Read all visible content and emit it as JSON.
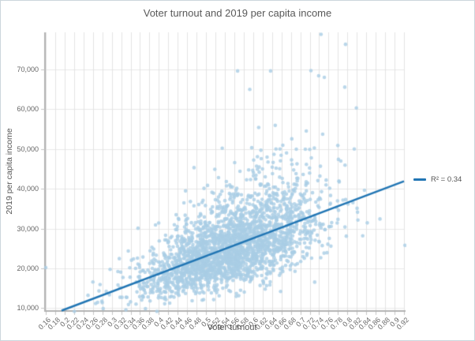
{
  "window": {
    "background": "#ffffff",
    "border_color": "#ccd6dc"
  },
  "chart_data": {
    "type": "scatter",
    "title": "Voter turnout and 2019 per capita income",
    "xlabel": "Voter turnout",
    "ylabel": "2019 per capita income",
    "xlim": [
      0.16,
      0.92
    ],
    "ylim": [
      9300,
      79300
    ],
    "grid": true,
    "x_ticks": [
      0.16,
      0.18,
      0.2,
      0.22,
      0.24,
      0.26,
      0.28,
      0.3,
      0.32,
      0.34,
      0.36,
      0.38,
      0.4,
      0.42,
      0.44,
      0.46,
      0.48,
      0.5,
      0.52,
      0.54,
      0.56,
      0.58,
      0.6,
      0.62,
      0.64,
      0.66,
      0.68,
      0.7,
      0.72,
      0.74,
      0.76,
      0.78,
      0.8,
      0.82,
      0.84,
      0.86,
      0.88,
      0.9,
      0.92
    ],
    "x_tick_labels": [
      "0.16",
      "0.18",
      "0.2",
      "0.22",
      "0.24",
      "0.26",
      "0.28",
      "0.3",
      "0.32",
      "0.34",
      "0.36",
      "0.38",
      "0.4",
      "0.42",
      "0.44",
      "0.46",
      "0.48",
      "0.5",
      "0.52",
      "0.54",
      "0.56",
      "0.58",
      "0.6",
      "0.62",
      "0.64",
      "0.66",
      "0.68",
      "0.7",
      "0.72",
      "0.74",
      "0.76",
      "0.78",
      "0.8",
      "0.82",
      "0.84",
      "0.86",
      "0.88",
      "0.9",
      "0.92"
    ],
    "y_ticks": [
      10000,
      20000,
      30000,
      40000,
      50000,
      60000,
      70000
    ],
    "y_tick_labels": [
      "10,000",
      "20,000",
      "30,000",
      "40,000",
      "50,000",
      "60,000",
      "70,000"
    ],
    "legend": {
      "label": "R² = 0.34",
      "position": "right",
      "line_color": "#2276b4"
    },
    "trendline": {
      "r_squared": 0.34,
      "x1": 0.1935,
      "y1": 9400,
      "x2": 0.92,
      "y2": 41900,
      "color": "#2276b4",
      "width": 2.5
    },
    "points": {
      "description": "Dense cloud of ~2550 county-level observations; positive correlation between voter turnout and 2019 per capita income (R² = 0.34).",
      "color": "#a9cde5",
      "opacity": 0.8,
      "radius": 2.3,
      "count": 2550,
      "seed": 7,
      "distribution": {
        "model": "x ~ Normal(x_mean, x_sd); y = (slope*x + intercept) * exp(Normal(0, log_sd))",
        "x_mean": 0.555,
        "x_sd": 0.093,
        "slope": 44520,
        "intercept": 941,
        "log_sd": 0.22,
        "x_clip": [
          0.162,
          0.925
        ],
        "y_clip": [
          9200,
          78800
        ]
      },
      "anchors": [
        [
          0.744,
          78800
        ],
        [
          0.796,
          76300
        ],
        [
          0.567,
          69600
        ],
        [
          0.637,
          69600
        ],
        [
          0.739,
          68400
        ],
        [
          0.751,
          68000
        ],
        [
          0.819,
          60300
        ],
        [
          0.16,
          20200
        ],
        [
          0.922,
          25800
        ],
        [
          0.33,
          9600
        ]
      ]
    },
    "axis_style": {
      "axis_color": "#b2b2b2",
      "grid_color_vertical": "#e3e3e3",
      "grid_color_horizontal": "#e9e9e9",
      "tick_color": "#c4c4c4"
    }
  }
}
